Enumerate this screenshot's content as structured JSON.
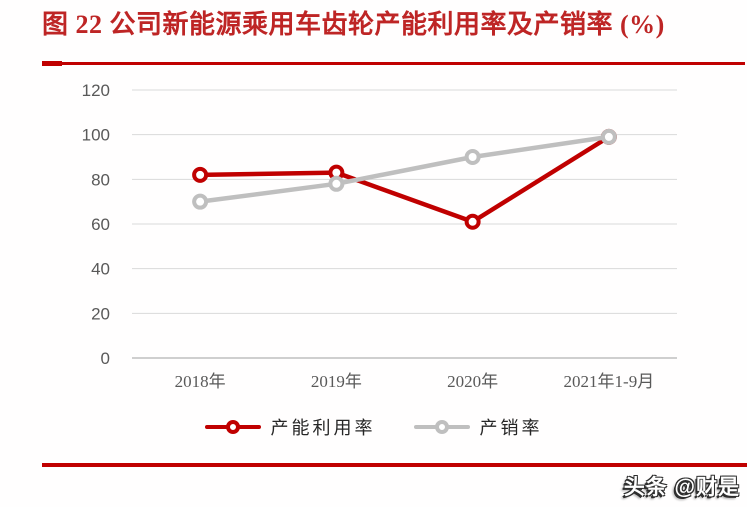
{
  "header": {
    "title": "图 22  公司新能源乘用车齿轮产能利用率及产销率 (%)",
    "title_color": "#be2525",
    "rule_color": "#c00000"
  },
  "chart_data": {
    "type": "line",
    "title": "公司新能源乘用车齿轮产能利用率及产销率 (%)",
    "categories": [
      "2018年",
      "2019年",
      "2020年",
      "2021年1-9月"
    ],
    "series": [
      {
        "name": "产能利用率",
        "color": "#c00000",
        "values": [
          82,
          83,
          61,
          99
        ]
      },
      {
        "name": "产销率",
        "color": "#bfbfbf",
        "values": [
          70,
          78,
          90,
          99
        ]
      }
    ],
    "xlabel": "",
    "ylabel": "",
    "ylim": [
      0,
      120
    ],
    "yticks": [
      0,
      20,
      40,
      60,
      80,
      100,
      120
    ],
    "grid": "horizontal",
    "gridline_color": "#d9d9d9",
    "axis_line_color": "#bfbfbf",
    "tick_label_color": "#595959",
    "legend_position": "bottom",
    "marker": "open-circle"
  },
  "watermark": {
    "text": "头条 @财是"
  }
}
